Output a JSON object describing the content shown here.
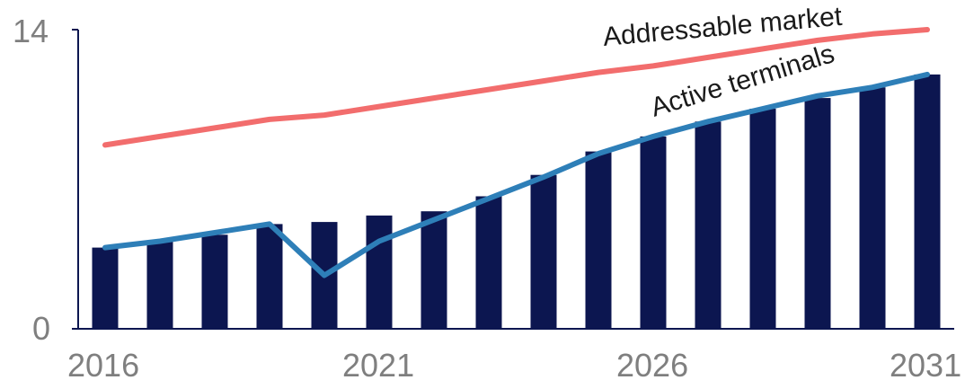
{
  "chart_data": {
    "type": "bar",
    "title": "",
    "xlabel": "",
    "ylabel": "",
    "x": [
      2016,
      2017,
      2018,
      2019,
      2020,
      2021,
      2022,
      2023,
      2024,
      2025,
      2026,
      2027,
      2028,
      2029,
      2030,
      2031
    ],
    "ylim": [
      0,
      14
    ],
    "y_ticks": [
      "0",
      "14"
    ],
    "x_ticks": [
      "2016",
      "2021",
      "2026",
      "2031"
    ],
    "grid": false,
    "bars": {
      "values": [
        3.8,
        4.1,
        4.4,
        4.9,
        5.0,
        5.3,
        5.5,
        6.2,
        7.2,
        8.3,
        9.0,
        9.7,
        10.3,
        10.8,
        11.3,
        11.9
      ],
      "color": "#0c1650"
    },
    "series": [
      {
        "name": "Addressable market",
        "type": "line",
        "color": "#f26d6d",
        "values": [
          8.6,
          9.0,
          9.4,
          9.8,
          10.0,
          10.4,
          10.8,
          11.2,
          11.6,
          12.0,
          12.3,
          12.7,
          13.1,
          13.5,
          13.8,
          14.0
        ]
      },
      {
        "name": "Active terminals",
        "type": "line",
        "color": "#2e7fb8",
        "values": [
          3.8,
          4.1,
          4.5,
          4.9,
          2.5,
          4.1,
          5.1,
          6.1,
          7.1,
          8.2,
          9.0,
          9.7,
          10.3,
          10.9,
          11.3,
          11.9
        ]
      }
    ]
  }
}
